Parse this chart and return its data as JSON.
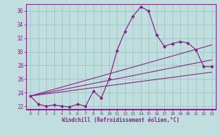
{
  "xlabel": "Windchill (Refroidissement éolien,°C)",
  "bg_color": "#c0dede",
  "grid_color": "#a0c8c8",
  "line_color": "#882288",
  "axis_color": "#882288",
  "xlim": [
    -0.5,
    23.5
  ],
  "ylim": [
    21.5,
    37.0
  ],
  "xticks": [
    0,
    1,
    2,
    3,
    4,
    5,
    6,
    7,
    8,
    9,
    10,
    11,
    12,
    13,
    14,
    15,
    16,
    17,
    18,
    19,
    20,
    21,
    22,
    23
  ],
  "yticks": [
    22,
    24,
    26,
    28,
    30,
    32,
    34,
    36
  ],
  "series": [
    23.5,
    22.3,
    22.0,
    22.2,
    22.0,
    21.9,
    22.3,
    22.0,
    24.2,
    23.2,
    26.0,
    30.2,
    33.0,
    35.2,
    36.6,
    36.0,
    32.5,
    30.8,
    31.2,
    31.5,
    31.3,
    30.3,
    27.8,
    27.8
  ],
  "trend_lines": [
    [
      [
        0,
        23.5
      ],
      [
        23,
        31.0
      ]
    ],
    [
      [
        0,
        23.5
      ],
      [
        23,
        28.8
      ]
    ],
    [
      [
        0,
        23.5
      ],
      [
        23,
        27.0
      ]
    ]
  ]
}
